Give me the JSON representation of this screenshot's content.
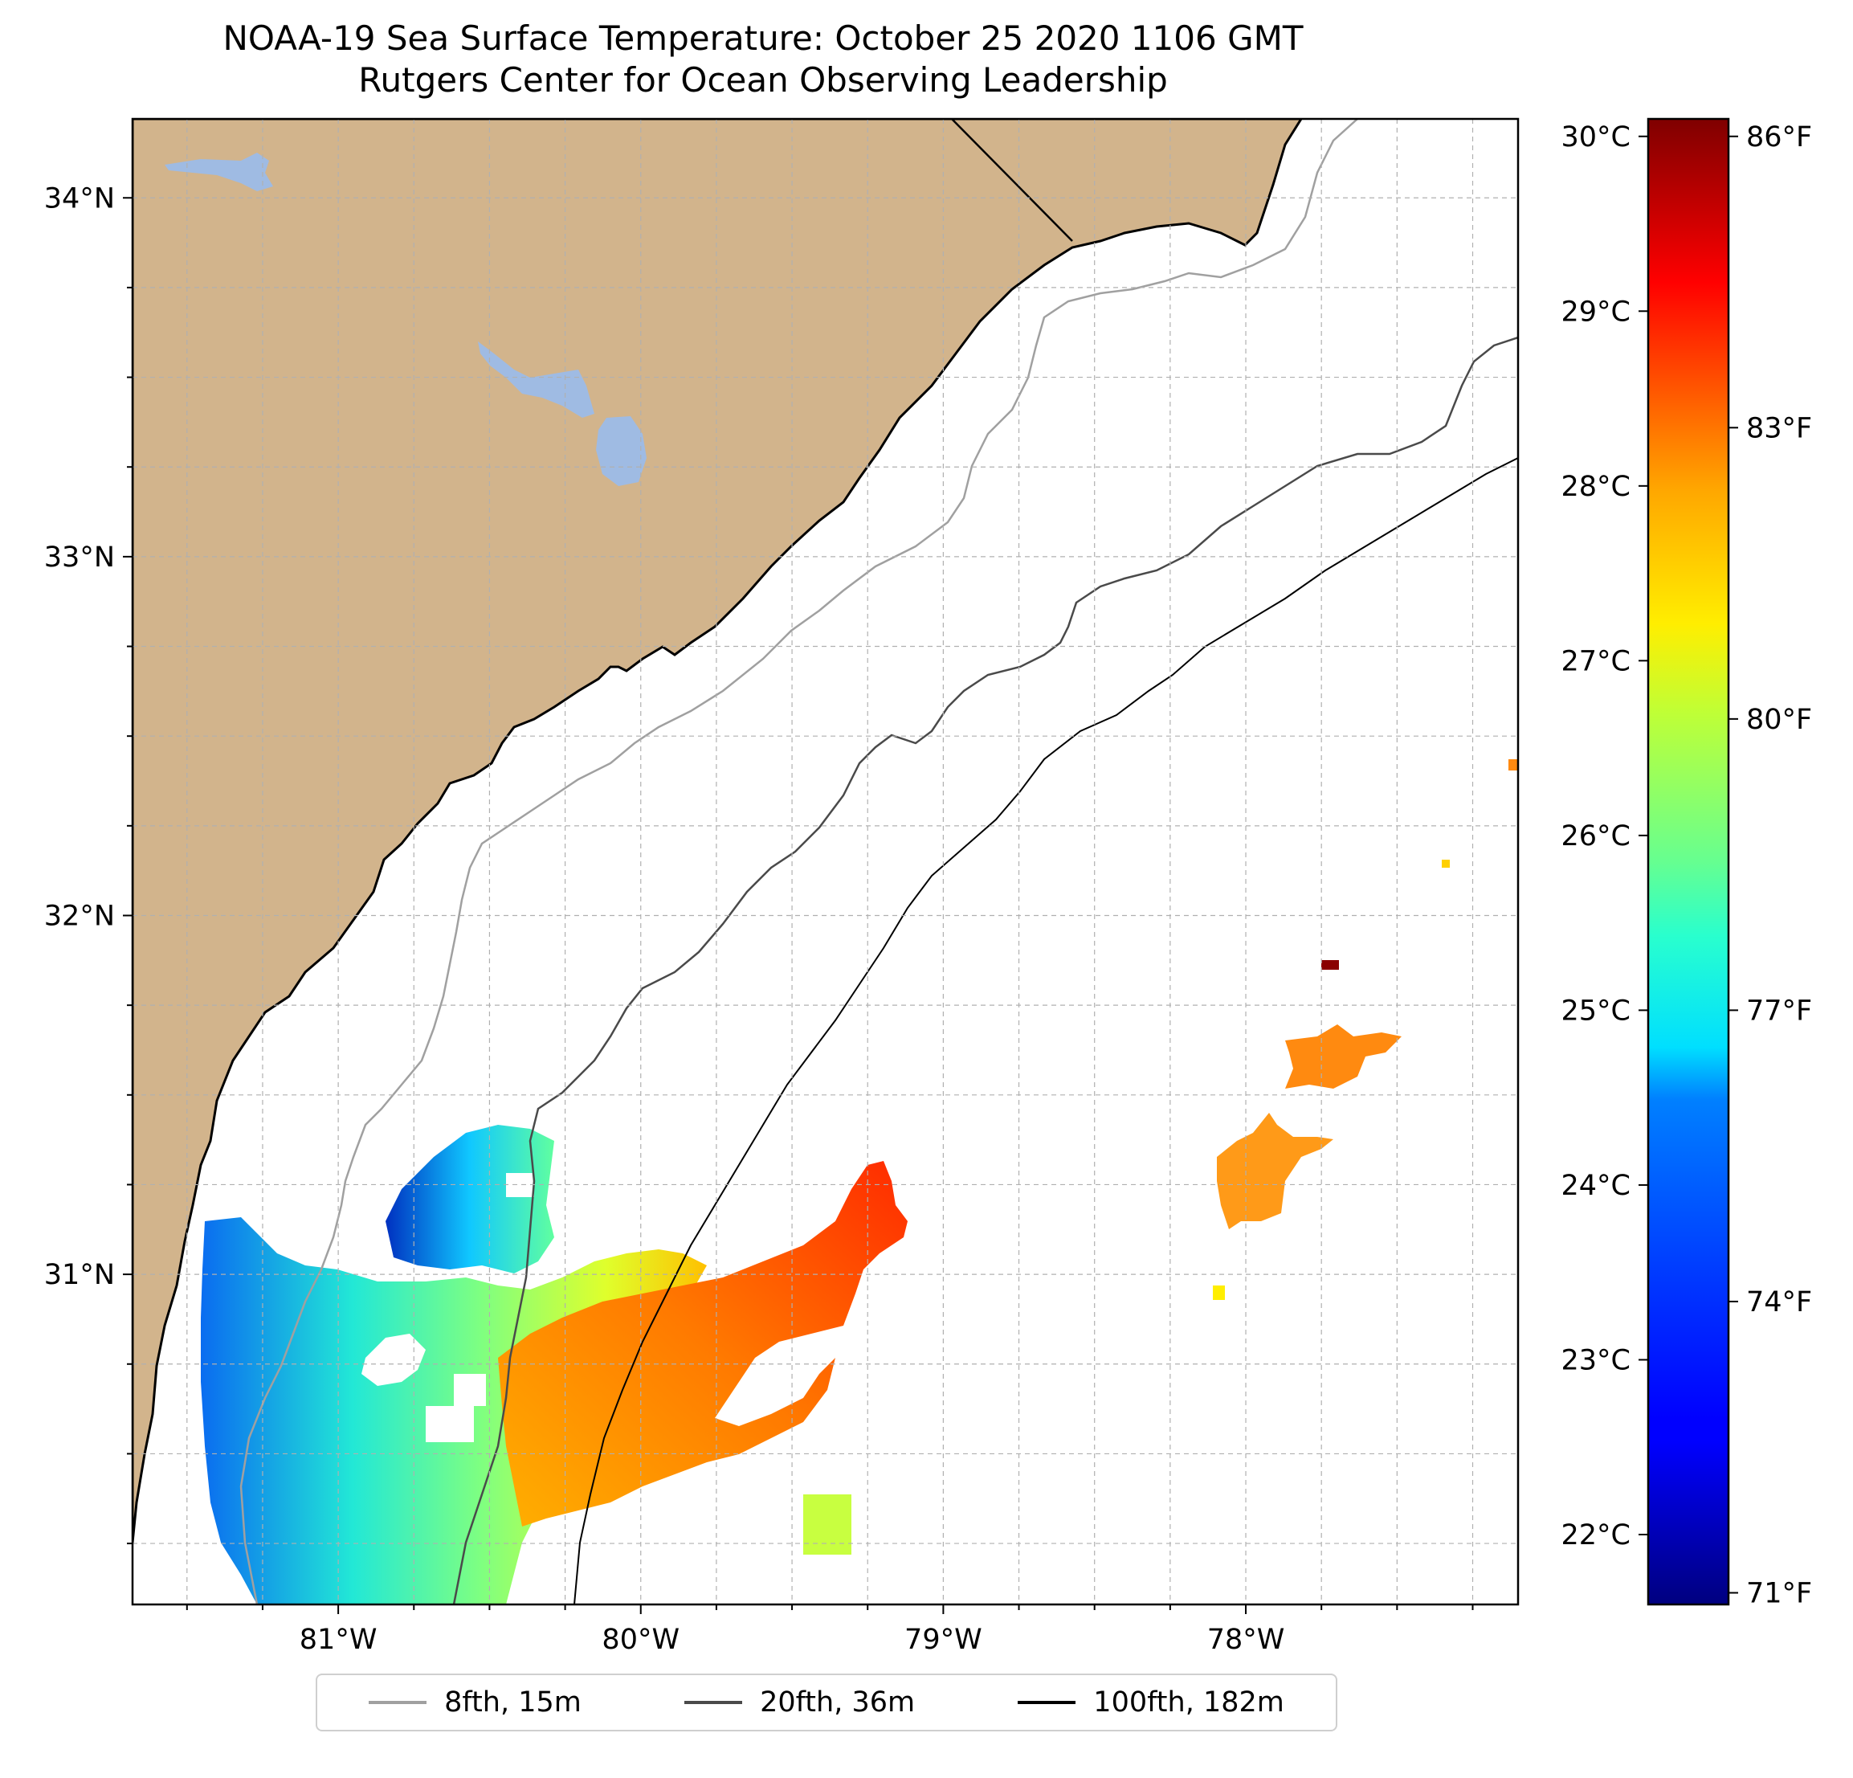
{
  "title": "NOAA-19 Sea Surface Temperature: October 25 2020 1106 GMT",
  "subtitle": "Rutgers Center for Ocean Observing Leadership",
  "map": {
    "lon_range": [
      -81.68,
      -77.1
    ],
    "lat_range": [
      30.08,
      34.22
    ],
    "lon_ticks": [
      {
        "value": -81,
        "label": "81°W"
      },
      {
        "value": -80,
        "label": "80°W"
      },
      {
        "value": -79,
        "label": "79°W"
      },
      {
        "value": -78,
        "label": "78°W"
      }
    ],
    "lat_ticks": [
      {
        "value": 31,
        "label": "31°N"
      },
      {
        "value": 32,
        "label": "32°N"
      },
      {
        "value": 33,
        "label": "33°N"
      },
      {
        "value": 34,
        "label": "34°N"
      }
    ],
    "grid_spacing_deg": 0.25,
    "grid": true,
    "colors": {
      "land": "#d2b48c",
      "lakes": "#9fbbe3",
      "ocean": "#ffffff",
      "grid": "#b0b0b0"
    }
  },
  "colorbar": {
    "celsius_range": [
      21.6,
      30.1
    ],
    "celsius_ticks": [
      {
        "value": 22,
        "label": "22°C"
      },
      {
        "value": 23,
        "label": "23°C"
      },
      {
        "value": 24,
        "label": "24°C"
      },
      {
        "value": 25,
        "label": "25°C"
      },
      {
        "value": 26,
        "label": "26°C"
      },
      {
        "value": 27,
        "label": "27°C"
      },
      {
        "value": 28,
        "label": "28°C"
      },
      {
        "value": 29,
        "label": "29°C"
      },
      {
        "value": 30,
        "label": "30°C"
      }
    ],
    "fahrenheit_ticks": [
      {
        "value": 71,
        "label": "71°F"
      },
      {
        "value": 74,
        "label": "74°F"
      },
      {
        "value": 77,
        "label": "77°F"
      },
      {
        "value": 80,
        "label": "80°F"
      },
      {
        "value": 83,
        "label": "83°F"
      },
      {
        "value": 86,
        "label": "86°F"
      }
    ],
    "colormap": "jet"
  },
  "legend": {
    "placement": "bottom-center",
    "items": [
      {
        "label": "8fth, 15m",
        "color": "#a0a0a0"
      },
      {
        "label": "20fth, 36m",
        "color": "#4a4a4a"
      },
      {
        "label": "100fth, 182m",
        "color": "#000000"
      }
    ]
  }
}
